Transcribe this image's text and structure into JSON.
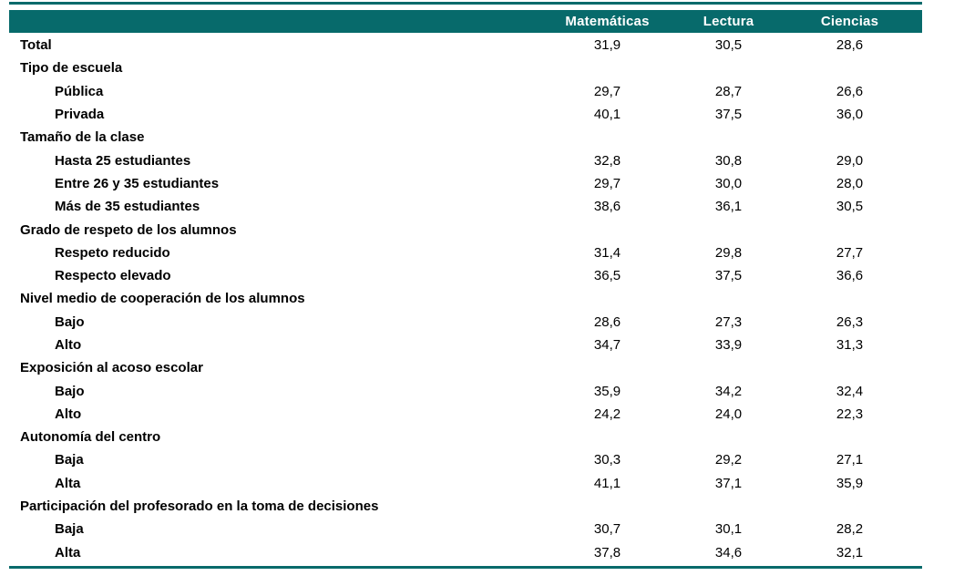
{
  "theme": {
    "accent_teal": "#076a6b",
    "header_text": "#ffffff",
    "body_text": "#000000",
    "background": "#ffffff"
  },
  "chart_data": {
    "type": "table",
    "title": "",
    "columns": [
      "Matemáticas",
      "Lectura",
      "Ciencias"
    ],
    "decimal_separator": ",",
    "rows": [
      {
        "label": "Total",
        "indent": 0,
        "section": false,
        "values": [
          31.9,
          30.5,
          28.6
        ]
      },
      {
        "label": "Tipo de escuela",
        "indent": 0,
        "section": true,
        "values": []
      },
      {
        "label": "Pública",
        "indent": 1,
        "section": false,
        "values": [
          29.7,
          28.7,
          26.6
        ]
      },
      {
        "label": "Privada",
        "indent": 1,
        "section": false,
        "values": [
          40.1,
          37.5,
          36.0
        ]
      },
      {
        "label": "Tamaño de la clase",
        "indent": 0,
        "section": true,
        "values": []
      },
      {
        "label": "Hasta 25 estudiantes",
        "indent": 1,
        "section": false,
        "values": [
          32.8,
          30.8,
          29.0
        ]
      },
      {
        "label": "Entre 26 y 35 estudiantes",
        "indent": 1,
        "section": false,
        "values": [
          29.7,
          30.0,
          28.0
        ]
      },
      {
        "label": "Más de 35 estudiantes",
        "indent": 1,
        "section": false,
        "values": [
          38.6,
          36.1,
          30.5
        ]
      },
      {
        "label": "Grado de respeto de los alumnos",
        "indent": 0,
        "section": true,
        "values": []
      },
      {
        "label": "Respeto reducido",
        "indent": 1,
        "section": false,
        "values": [
          31.4,
          29.8,
          27.7
        ]
      },
      {
        "label": "Respecto elevado",
        "indent": 1,
        "section": false,
        "values": [
          36.5,
          37.5,
          36.6
        ]
      },
      {
        "label": "Nivel medio de cooperación de los alumnos",
        "indent": 0,
        "section": true,
        "values": []
      },
      {
        "label": "Bajo",
        "indent": 1,
        "section": false,
        "values": [
          28.6,
          27.3,
          26.3
        ]
      },
      {
        "label": "Alto",
        "indent": 1,
        "section": false,
        "values": [
          34.7,
          33.9,
          31.3
        ]
      },
      {
        "label": "Exposición al acoso escolar",
        "indent": 0,
        "section": true,
        "values": []
      },
      {
        "label": "Bajo",
        "indent": 1,
        "section": false,
        "values": [
          35.9,
          34.2,
          32.4
        ]
      },
      {
        "label": "Alto",
        "indent": 1,
        "section": false,
        "values": [
          24.2,
          24.0,
          22.3
        ]
      },
      {
        "label": "Autonomía del centro",
        "indent": 0,
        "section": true,
        "values": []
      },
      {
        "label": "Baja",
        "indent": 1,
        "section": false,
        "values": [
          30.3,
          29.2,
          27.1
        ]
      },
      {
        "label": "Alta",
        "indent": 1,
        "section": false,
        "values": [
          41.1,
          37.1,
          35.9
        ]
      },
      {
        "label": "Participación del profesorado en la toma de decisiones",
        "indent": 0,
        "section": true,
        "values": []
      },
      {
        "label": "Baja",
        "indent": 1,
        "section": false,
        "values": [
          30.7,
          30.1,
          28.2
        ]
      },
      {
        "label": "Alta",
        "indent": 1,
        "section": false,
        "values": [
          37.8,
          34.6,
          32.1
        ]
      }
    ]
  }
}
